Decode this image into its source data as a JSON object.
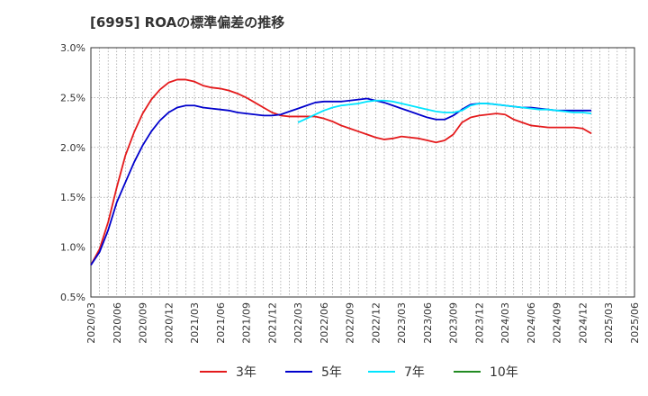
{
  "chart_data": {
    "type": "line",
    "title": "[6995]  ROAの標準偏差の推移",
    "xlabel": "",
    "ylabel": "",
    "ylim": [
      0.5,
      3.0
    ],
    "yticks": [
      "0.5%",
      "1.0%",
      "1.5%",
      "2.0%",
      "2.5%",
      "3.0%"
    ],
    "ytick_values": [
      0.5,
      1.0,
      1.5,
      2.0,
      2.5,
      3.0
    ],
    "x_ticks": [
      "2020/03",
      "2020/06",
      "2020/09",
      "2020/12",
      "2021/03",
      "2021/06",
      "2021/09",
      "2021/12",
      "2022/03",
      "2022/06",
      "2022/09",
      "2022/12",
      "2023/03",
      "2023/06",
      "2023/09",
      "2023/12",
      "2024/03",
      "2024/06",
      "2024/09",
      "2024/12",
      "2025/03",
      "2025/06"
    ],
    "grid": true,
    "legend_position": "bottom",
    "series": [
      {
        "name": "3年",
        "color": "#e41a1c",
        "start": "2020/03",
        "values": [
          0.82,
          0.98,
          1.25,
          1.6,
          1.92,
          2.15,
          2.34,
          2.48,
          2.58,
          2.65,
          2.68,
          2.68,
          2.66,
          2.62,
          2.6,
          2.59,
          2.57,
          2.54,
          2.5,
          2.45,
          2.4,
          2.35,
          2.32,
          2.31,
          2.31,
          2.31,
          2.31,
          2.29,
          2.26,
          2.22,
          2.19,
          2.16,
          2.13,
          2.1,
          2.08,
          2.09,
          2.11,
          2.1,
          2.09,
          2.07,
          2.05,
          2.07,
          2.13,
          2.25,
          2.3,
          2.32,
          2.33,
          2.34,
          2.33,
          2.28,
          2.25,
          2.22,
          2.21,
          2.2,
          2.2,
          2.2,
          2.2,
          2.19,
          2.14
        ]
      },
      {
        "name": "5年",
        "color": "#0000cc",
        "start": "2020/03",
        "values": [
          0.82,
          0.95,
          1.17,
          1.45,
          1.65,
          1.85,
          2.02,
          2.16,
          2.27,
          2.35,
          2.4,
          2.42,
          2.42,
          2.4,
          2.39,
          2.38,
          2.37,
          2.35,
          2.34,
          2.33,
          2.32,
          2.32,
          2.33,
          2.36,
          2.39,
          2.42,
          2.45,
          2.46,
          2.46,
          2.46,
          2.47,
          2.48,
          2.49,
          2.47,
          2.45,
          2.42,
          2.39,
          2.36,
          2.33,
          2.3,
          2.28,
          2.28,
          2.32,
          2.38,
          2.43,
          2.44,
          2.44,
          2.43,
          2.42,
          2.41,
          2.4,
          2.4,
          2.39,
          2.38,
          2.37,
          2.37,
          2.37,
          2.37,
          2.37
        ]
      },
      {
        "name": "7年",
        "color": "#00e5ff",
        "start": "2022/03",
        "values": [
          2.25,
          2.29,
          2.33,
          2.37,
          2.4,
          2.42,
          2.43,
          2.44,
          2.46,
          2.47,
          2.47,
          2.46,
          2.44,
          2.42,
          2.4,
          2.38,
          2.36,
          2.35,
          2.35,
          2.37,
          2.42,
          2.44,
          2.44,
          2.43,
          2.42,
          2.41,
          2.4,
          2.39,
          2.38,
          2.38,
          2.37,
          2.36,
          2.35,
          2.35,
          2.34
        ]
      },
      {
        "name": "10年",
        "color": "#228b22",
        "start": "2020/03",
        "values": []
      }
    ]
  }
}
